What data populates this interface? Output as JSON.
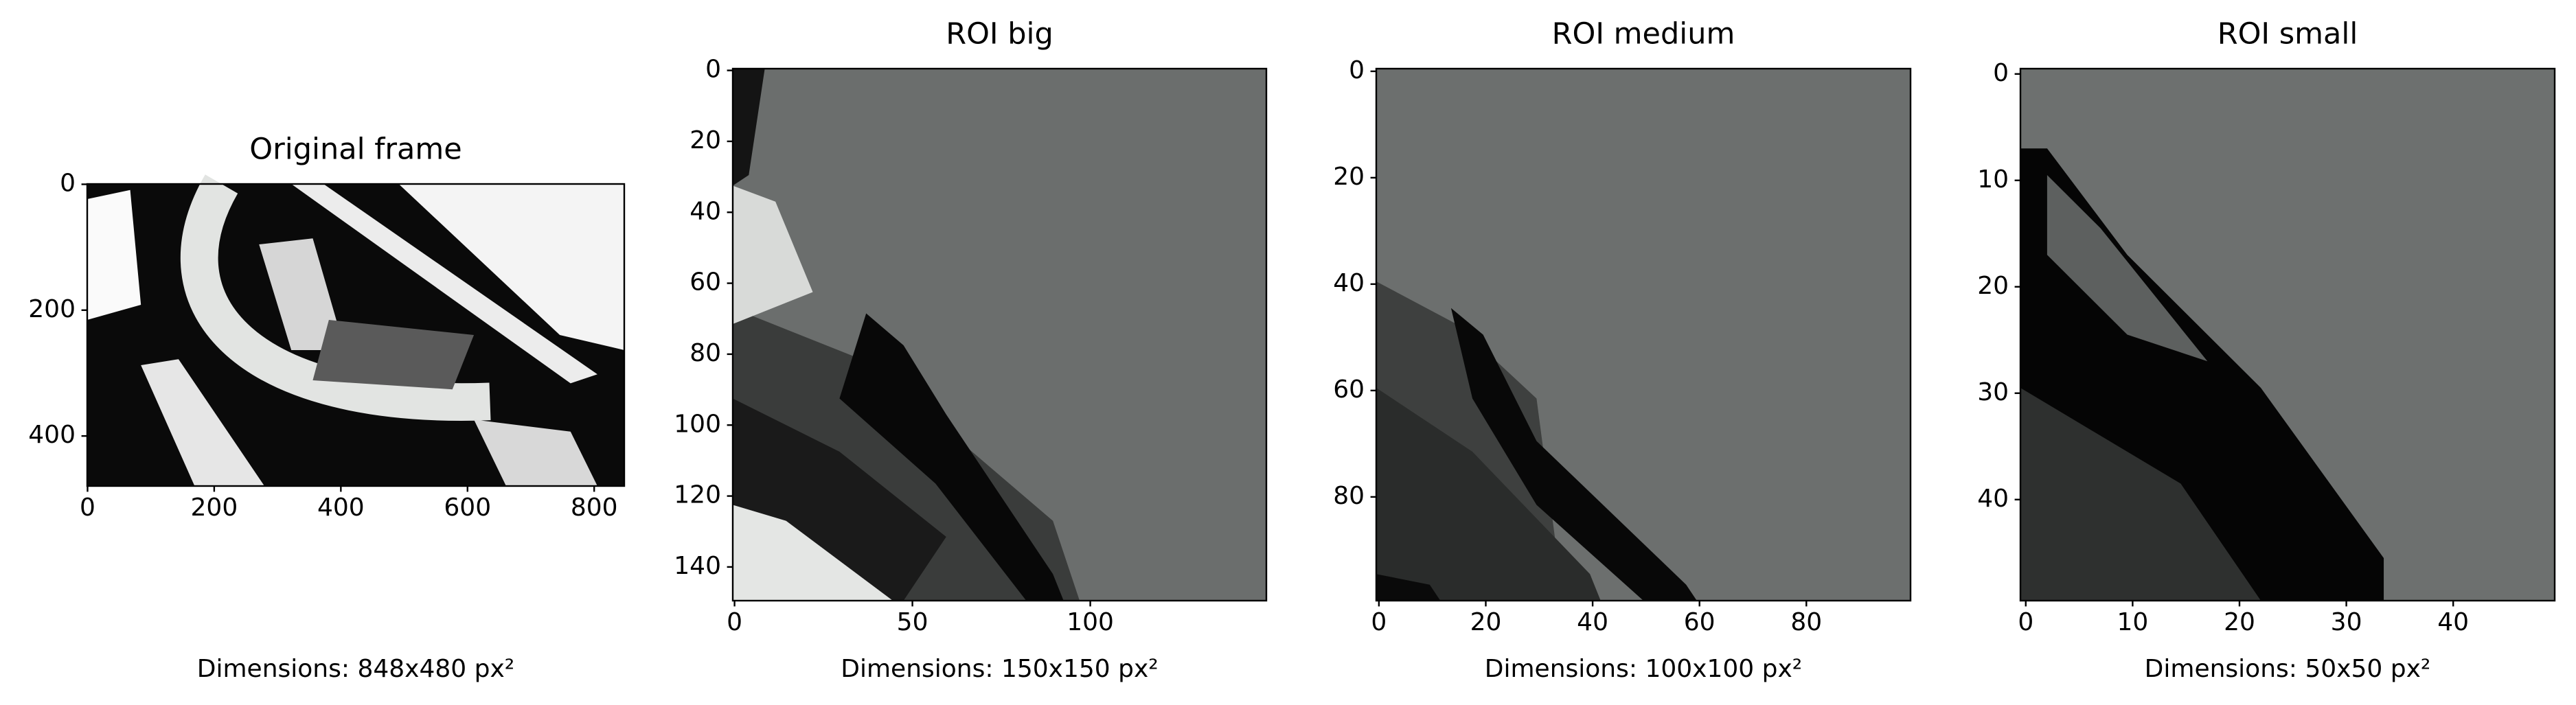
{
  "chart_data": [
    {
      "type": "image",
      "title": "Original frame",
      "xlabel": "Dimensions: 848x480 px²",
      "xlim": [
        -0.5,
        847.5
      ],
      "ylim": [
        479.5,
        -0.5
      ],
      "xticks": [
        0,
        200,
        400,
        600,
        800
      ],
      "yticks": [
        0,
        200,
        400
      ]
    },
    {
      "type": "image",
      "title": "ROI big",
      "xlabel": "Dimensions: 150x150 px²",
      "xlim": [
        -0.5,
        149.5
      ],
      "ylim": [
        149.5,
        -0.5
      ],
      "xticks": [
        0,
        50,
        100
      ],
      "yticks": [
        0,
        20,
        40,
        60,
        80,
        100,
        120,
        140
      ]
    },
    {
      "type": "image",
      "title": "ROI medium",
      "xlabel": "Dimensions: 100x100 px²",
      "xlim": [
        -0.5,
        99.5
      ],
      "ylim": [
        99.5,
        -0.5
      ],
      "xticks": [
        0,
        20,
        40,
        60,
        80
      ],
      "yticks": [
        0,
        20,
        40,
        60,
        80
      ]
    },
    {
      "type": "image",
      "title": "ROI small",
      "xlabel": "Dimensions: 50x50 px²",
      "xlim": [
        -0.5,
        49.5
      ],
      "ylim": [
        49.5,
        -0.5
      ],
      "xticks": [
        0,
        10,
        20,
        30,
        40
      ],
      "yticks": [
        0,
        10,
        20,
        30,
        40
      ]
    }
  ]
}
